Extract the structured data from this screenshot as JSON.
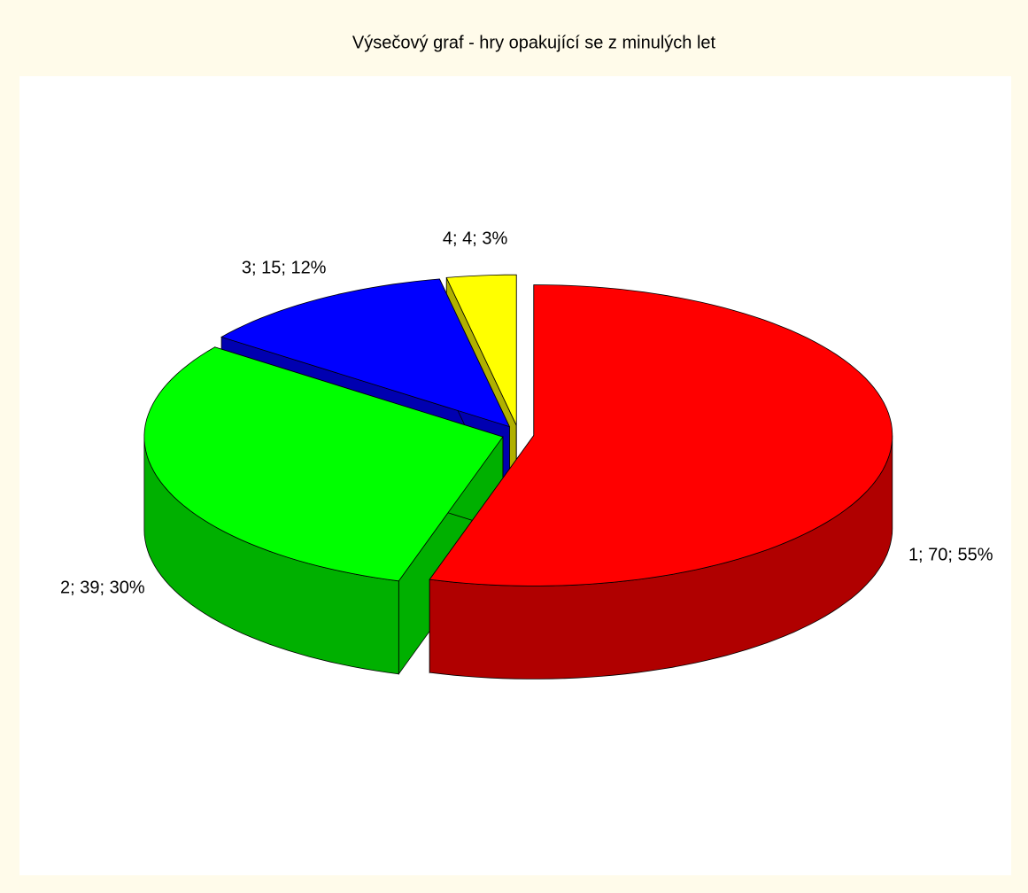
{
  "chart_data": {
    "type": "pie3d",
    "title": "Výsečový graf - hry opakující se z minulých let",
    "categories": [
      "1",
      "2",
      "3",
      "4"
    ],
    "values": [
      70,
      39,
      15,
      4
    ],
    "value_labels": [
      "1; 70; 55%",
      "2; 39; 30%",
      "3; 15; 12%",
      "4; 4; 3%"
    ],
    "colors": [
      "#ff0000",
      "#00ff00",
      "#0000ff",
      "#ffff00"
    ]
  }
}
